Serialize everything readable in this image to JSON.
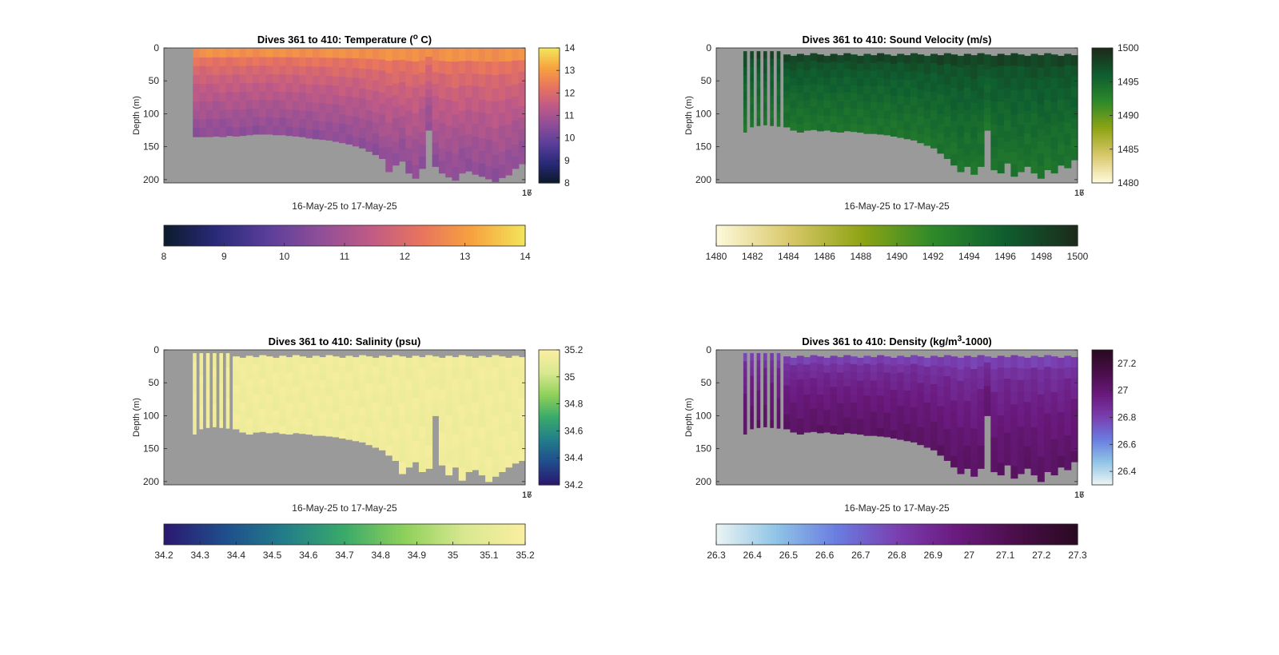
{
  "colors": {
    "no_data": "#9a9a9a",
    "axis": "#262626",
    "temperature_ramp": [
      "#0d1b2e",
      "#2a2a7a",
      "#5a3e9a",
      "#8e4e98",
      "#c05a86",
      "#e8745e",
      "#f7a23e",
      "#f3e35a"
    ],
    "sound_velocity_ramp": [
      "#fdf8d8",
      "#d9c86a",
      "#8fa414",
      "#2e8a2a",
      "#0f5e30",
      "#1c2b1a"
    ],
    "salinity_ramp": [
      "#2b1a70",
      "#1f4e8c",
      "#227e8a",
      "#3aaa6a",
      "#8ed05a",
      "#d8e890",
      "#faeea0"
    ],
    "density_ramp": [
      "#e8f3f3",
      "#8ec3e6",
      "#6a7ce0",
      "#7a3fb0",
      "#6a1a7e",
      "#4a0e4a",
      "#2a0a22"
    ]
  },
  "chart_data": [
    {
      "type": "heatmap",
      "key": "temperature",
      "title": "Dives 361 to 410: Temperature (",
      "title_sup": "o",
      "title_end": " C)",
      "xlabel": "16-May-25 to 17-May-25",
      "ylabel": "Depth (m)",
      "xtick_labels": [
        "16",
        "17"
      ],
      "y_ticks": [
        0,
        50,
        100,
        150,
        200
      ],
      "ylim": [
        0,
        205
      ],
      "y_reversed": true,
      "dives": [
        361,
        410
      ],
      "bottom_depth_m": [
        135,
        135,
        135,
        134,
        135,
        133,
        134,
        133,
        132,
        131,
        131,
        131,
        132,
        132,
        133,
        134,
        135,
        137,
        138,
        139,
        140,
        142,
        144,
        146,
        149,
        152,
        157,
        162,
        168,
        188,
        178,
        172,
        190,
        198,
        183,
        125,
        180,
        190,
        196,
        201,
        190,
        187,
        192,
        195,
        199,
        203,
        197,
        193,
        183,
        176
      ],
      "surface_value": 12.8,
      "bottom_value": 10.6,
      "colorbar": {
        "min": 8,
        "max": 14,
        "ticks": [
          8,
          9,
          10,
          11,
          12,
          13,
          14
        ]
      },
      "hcolorbar": {
        "min": 8,
        "max": 14,
        "ticks": [
          8,
          9,
          10,
          11,
          12,
          13,
          14
        ]
      }
    },
    {
      "type": "heatmap",
      "key": "sound_velocity",
      "title": "Dives 361 to 410: Sound Velocity (m/s)",
      "title_sup": "",
      "title_end": "",
      "xlabel": "16-May-25 to 17-May-25",
      "ylabel": "Depth (m)",
      "xtick_labels": [
        "16",
        "17"
      ],
      "y_ticks": [
        0,
        50,
        100,
        150,
        200
      ],
      "ylim": [
        0,
        205
      ],
      "y_reversed": true,
      "dives": [
        361,
        410
      ],
      "bottom_depth_m": [
        128,
        120,
        118,
        117,
        118,
        119,
        120,
        125,
        128,
        125,
        124,
        126,
        125,
        127,
        128,
        126,
        127,
        128,
        130,
        130,
        131,
        132,
        134,
        136,
        138,
        140,
        144,
        148,
        152,
        160,
        168,
        178,
        188,
        180,
        192,
        180,
        125,
        185,
        190,
        175,
        195,
        188,
        180,
        190,
        198,
        185,
        190,
        178,
        182,
        170
      ],
      "surface_value": 1498,
      "bottom_value": 1494,
      "colorbar": {
        "min": 1480,
        "max": 1500,
        "ticks": [
          1480,
          1485,
          1490,
          1495,
          1500
        ]
      },
      "hcolorbar": {
        "min": 1480,
        "max": 1500,
        "ticks": [
          1480,
          1482,
          1484,
          1486,
          1488,
          1490,
          1492,
          1494,
          1496,
          1498,
          1500
        ]
      }
    },
    {
      "type": "heatmap",
      "key": "salinity",
      "title": "Dives 361 to 410: Salinity (psu)",
      "title_sup": "",
      "title_end": "",
      "xlabel": "16-May-25 to 17-May-25",
      "ylabel": "Depth (m)",
      "xtick_labels": [
        "16",
        "17"
      ],
      "y_ticks": [
        0,
        50,
        100,
        150,
        200
      ],
      "ylim": [
        0,
        205
      ],
      "y_reversed": true,
      "dives": [
        361,
        410
      ],
      "bottom_depth_m": [
        128,
        120,
        118,
        117,
        118,
        119,
        120,
        125,
        128,
        125,
        124,
        126,
        125,
        127,
        128,
        126,
        127,
        128,
        130,
        130,
        131,
        132,
        134,
        136,
        138,
        140,
        144,
        148,
        152,
        160,
        168,
        188,
        178,
        170,
        185,
        180,
        100,
        175,
        190,
        178,
        198,
        185,
        182,
        190,
        200,
        192,
        185,
        178,
        172,
        168
      ],
      "surface_value": 35.15,
      "bottom_value": 35.15,
      "colorbar": {
        "min": 34.2,
        "max": 35.2,
        "ticks": [
          34.2,
          34.4,
          34.6,
          34.8,
          35,
          35.2
        ]
      },
      "hcolorbar": {
        "min": 34.2,
        "max": 35.2,
        "ticks": [
          34.2,
          34.3,
          34.4,
          34.5,
          34.6,
          34.7,
          34.8,
          34.9,
          35,
          35.1,
          35.2
        ]
      }
    },
    {
      "type": "heatmap",
      "key": "density",
      "title": "Dives 361 to 410: Density (kg/m",
      "title_sup": "3",
      "title_end": "-1000)",
      "xlabel": "16-May-25 to 17-May-25",
      "ylabel": "Depth (m)",
      "xtick_labels": [
        "16",
        "17"
      ],
      "y_ticks": [
        0,
        50,
        100,
        150,
        200
      ],
      "ylim": [
        0,
        205
      ],
      "y_reversed": true,
      "dives": [
        361,
        410
      ],
      "bottom_depth_m": [
        128,
        120,
        118,
        117,
        118,
        119,
        120,
        125,
        128,
        125,
        124,
        126,
        125,
        127,
        128,
        126,
        127,
        128,
        130,
        130,
        131,
        132,
        134,
        136,
        138,
        140,
        144,
        148,
        152,
        160,
        168,
        178,
        188,
        180,
        192,
        180,
        100,
        185,
        190,
        175,
        195,
        188,
        180,
        190,
        200,
        185,
        190,
        178,
        182,
        170
      ],
      "surface_value": 26.8,
      "bottom_value": 27.05,
      "colorbar": {
        "min": 26.3,
        "max": 27.3,
        "ticks": [
          26.4,
          26.6,
          26.8,
          27,
          27.2
        ]
      },
      "hcolorbar": {
        "min": 26.3,
        "max": 27.3,
        "ticks": [
          26.3,
          26.4,
          26.5,
          26.6,
          26.7,
          26.8,
          26.9,
          27,
          27.1,
          27.2,
          27.3
        ]
      }
    }
  ]
}
